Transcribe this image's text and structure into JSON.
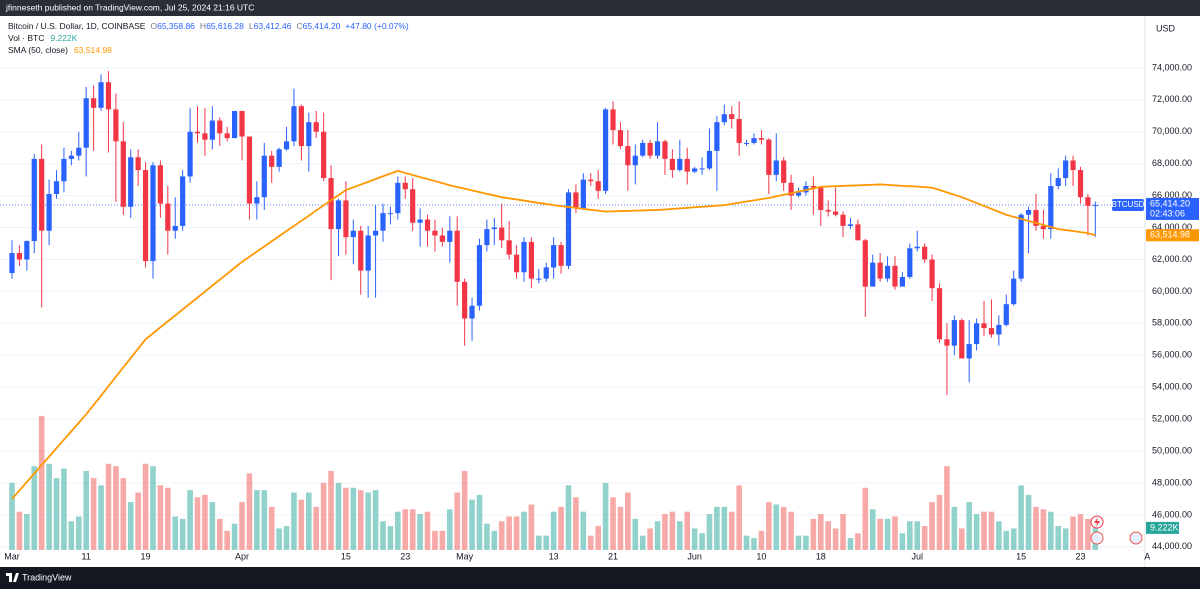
{
  "header": {
    "publisher": "jfinneseth published on TradingView.com, Jul 25, 2024 21:16 UTC"
  },
  "chart_data": {
    "type": "candlestick",
    "title": "Bitcoin / U.S. Dollar, 1D, COINBASE",
    "ohlc_legend": [
      {
        "label": "O",
        "value": "65,358.86"
      },
      {
        "label": "H",
        "value": "65,616.28"
      },
      {
        "label": "L",
        "value": "63,412.46"
      },
      {
        "label": "C",
        "value": "65,414.20"
      }
    ],
    "change": "+47.80 (+0.07%)",
    "categories": [
      "Mar",
      null,
      null,
      null,
      null,
      null,
      null,
      null,
      null,
      null,
      "11",
      null,
      null,
      null,
      null,
      null,
      null,
      null,
      "19",
      null,
      null,
      null,
      null,
      null,
      null,
      null,
      null,
      null,
      null,
      null,
      null,
      "Apr",
      null,
      null,
      null,
      null,
      null,
      null,
      null,
      null,
      null,
      null,
      null,
      null,
      null,
      "15",
      null,
      null,
      null,
      null,
      null,
      null,
      null,
      "23",
      null,
      null,
      null,
      null,
      null,
      null,
      null,
      "May",
      null,
      null,
      null,
      null,
      null,
      null,
      null,
      null,
      null,
      null,
      null,
      "13",
      null,
      null,
      null,
      null,
      null,
      null,
      null,
      "21",
      null,
      null,
      null,
      null,
      null,
      null,
      null,
      null,
      null,
      null,
      "Jun",
      null,
      null,
      null,
      null,
      null,
      null,
      null,
      null,
      "10",
      null,
      null,
      null,
      null,
      null,
      null,
      null,
      "18",
      null,
      null,
      null,
      null,
      null,
      null,
      null,
      null,
      null,
      null,
      null,
      null,
      "Jul",
      null,
      null,
      null,
      null,
      null,
      null,
      null,
      null,
      null,
      null,
      null,
      null,
      null,
      "15",
      null,
      null,
      null,
      null,
      null,
      null,
      null,
      "23",
      null,
      null,
      null,
      null,
      null,
      null,
      null,
      null,
      "A"
    ],
    "open": [
      61150,
      62400,
      62000,
      63150,
      68300,
      63800,
      66100,
      66900,
      68300,
      68500,
      69000,
      72100,
      71500,
      73100,
      71400,
      69400,
      65300,
      68400,
      67600,
      61900,
      67900,
      65500,
      63800,
      64100,
      67200,
      70000,
      69900,
      69500,
      70700,
      69900,
      69600,
      71300,
      69700,
      65500,
      65900,
      68500,
      67800,
      68900,
      69400,
      71600,
      69100,
      70600,
      70000,
      67100,
      63900,
      65700,
      63400,
      63800,
      61300,
      63500,
      63800,
      64900,
      64900,
      66800,
      66400,
      64300,
      64500,
      63800,
      63500,
      63100,
      63800,
      60600,
      58300,
      59100,
      62900,
      63900,
      64000,
      63200,
      62300,
      61200,
      63100,
      60800,
      60800,
      61500,
      62900,
      61600,
      66200,
      65200,
      67000,
      66900,
      66300,
      71400,
      70100,
      69100,
      67900,
      68500,
      69300,
      68500,
      69400,
      68300,
      67600,
      68300,
      67500,
      67700,
      67700,
      68800,
      70600,
      71100,
      70800,
      69300,
      69300,
      69600,
      69500,
      67300,
      68200,
      66800,
      66000,
      66200,
      66600,
      66500,
      65100,
      65000,
      64800,
      64100,
      64200,
      63200,
      60300,
      61800,
      60800,
      61600,
      60300,
      60900,
      62700,
      62800,
      62000,
      60200,
      57000,
      56600,
      58200,
      55800,
      56700,
      58000,
      57700,
      57300,
      57900,
      59200,
      60800,
      64800,
      65100,
      64100,
      63900,
      66600,
      67100,
      68200,
      67600,
      65900,
      65358.86,
      null,
      null,
      null,
      null,
      null,
      null,
      null
    ],
    "high": [
      63200,
      62900,
      63200,
      68600,
      69200,
      67000,
      67600,
      69000,
      68800,
      70000,
      72800,
      72900,
      73600,
      73800,
      72400,
      70600,
      68900,
      68900,
      68100,
      68100,
      68200,
      66600,
      65900,
      67600,
      71500,
      71600,
      71500,
      71600,
      70900,
      70300,
      71300,
      71300,
      69700,
      66900,
      69300,
      68800,
      69000,
      70300,
      72700,
      71700,
      71200,
      71300,
      71200,
      67900,
      65800,
      66900,
      64500,
      64100,
      64100,
      65400,
      65500,
      65300,
      67200,
      67200,
      67100,
      65200,
      64800,
      64500,
      64000,
      64700,
      64700,
      60800,
      59600,
      63300,
      64500,
      64600,
      65500,
      64400,
      62900,
      63400,
      63400,
      61400,
      61800,
      63400,
      63100,
      66400,
      66700,
      67400,
      67400,
      67600,
      71500,
      71900,
      70600,
      70100,
      69200,
      69500,
      69500,
      70600,
      69500,
      68900,
      69500,
      69000,
      67800,
      68400,
      70200,
      71000,
      71700,
      71600,
      71900,
      69500,
      69900,
      70100,
      69600,
      69900,
      68400,
      67300,
      66500,
      66900,
      67200,
      66600,
      65700,
      66500,
      65000,
      64600,
      64500,
      63300,
      62300,
      62400,
      62200,
      62200,
      61200,
      63000,
      63800,
      63000,
      62300,
      60500,
      58000,
      58500,
      58300,
      58200,
      58300,
      59400,
      59500,
      58500,
      59800,
      61300,
      64900,
      65300,
      66100,
      65100,
      67400,
      67700,
      68500,
      68500,
      67800,
      66100,
      65616.28,
      null,
      null,
      null,
      null,
      null,
      null,
      null
    ],
    "low": [
      60800,
      61600,
      61300,
      62400,
      59000,
      62900,
      65800,
      66200,
      67900,
      68200,
      67200,
      68800,
      71300,
      68700,
      65600,
      64800,
      64600,
      66600,
      61500,
      60800,
      64600,
      62300,
      63300,
      63800,
      66800,
      69300,
      68500,
      68900,
      69100,
      69400,
      69600,
      68200,
      64500,
      64500,
      65100,
      66800,
      67500,
      68800,
      69100,
      68200,
      67500,
      69600,
      66900,
      60700,
      62200,
      62300,
      61700,
      59800,
      59600,
      59600,
      63100,
      64200,
      64500,
      65800,
      63800,
      62800,
      62800,
      62500,
      62800,
      61800,
      59100,
      56600,
      56900,
      58800,
      62500,
      62900,
      62700,
      62000,
      60800,
      60600,
      60200,
      60500,
      60600,
      60800,
      61100,
      61400,
      64900,
      65100,
      66600,
      65800,
      66100,
      69200,
      68900,
      66300,
      66700,
      68400,
      68300,
      68300,
      67300,
      67100,
      67500,
      66700,
      67400,
      67300,
      67600,
      66300,
      70400,
      70200,
      68500,
      69100,
      69200,
      69200,
      66100,
      66900,
      66300,
      65100,
      65900,
      66000,
      64800,
      64100,
      64700,
      64700,
      63400,
      63900,
      63200,
      58400,
      60300,
      60600,
      60600,
      60100,
      60300,
      60800,
      62500,
      61800,
      59400,
      56800,
      53500,
      56000,
      55800,
      54300,
      56300,
      57200,
      57100,
      56600,
      57800,
      59100,
      60600,
      62400,
      63800,
      63300,
      63300,
      66400,
      66600,
      66600,
      65500,
      63500,
      63412.46,
      null,
      null,
      null,
      null,
      null,
      null,
      null
    ],
    "close": [
      62400,
      62000,
      63150,
      68300,
      63800,
      66100,
      66900,
      68300,
      68500,
      69000,
      72100,
      71500,
      73100,
      71400,
      69400,
      65300,
      68400,
      67600,
      61900,
      67900,
      65500,
      63800,
      64100,
      67200,
      70000,
      69900,
      69500,
      70700,
      69900,
      69600,
      71300,
      69700,
      65500,
      65900,
      68500,
      67800,
      68900,
      69400,
      71600,
      69100,
      70600,
      70000,
      67100,
      63900,
      65700,
      63400,
      63800,
      61300,
      63500,
      63800,
      64900,
      64900,
      66800,
      66400,
      64300,
      64500,
      63800,
      63500,
      63100,
      63800,
      60600,
      58300,
      59100,
      62900,
      63900,
      64000,
      63200,
      62300,
      61200,
      63100,
      60800,
      60800,
      61500,
      62900,
      61600,
      66200,
      65200,
      67000,
      66900,
      66300,
      71400,
      70100,
      69100,
      67900,
      68500,
      69300,
      68500,
      69400,
      68300,
      67600,
      68300,
      67500,
      67700,
      67700,
      68800,
      70600,
      71100,
      70800,
      69300,
      69300,
      69600,
      69500,
      67300,
      68200,
      66800,
      66000,
      66200,
      66600,
      66500,
      65100,
      65000,
      64800,
      64100,
      64200,
      63200,
      60300,
      61800,
      60800,
      61600,
      60300,
      60900,
      62700,
      62800,
      62000,
      60200,
      57000,
      56600,
      58200,
      55800,
      56700,
      58000,
      57700,
      57300,
      57900,
      59200,
      60800,
      64800,
      65100,
      64100,
      63900,
      66600,
      67100,
      68200,
      67600,
      65900,
      65358.86,
      65414.2,
      null,
      null,
      null,
      null,
      null,
      null,
      null
    ],
    "up_color": "#2962ff",
    "down_color": "#f23645",
    "volume": {
      "name": "Vol · BTC",
      "axis": "y2",
      "value_label": "9.222K",
      "up_color": "#26a69a",
      "down_color": "#ef5350",
      "values": [
        28000,
        16000,
        15000,
        35000,
        56000,
        36000,
        30000,
        34000,
        12000,
        14000,
        33000,
        30000,
        27000,
        36000,
        35000,
        30000,
        20000,
        24000,
        36000,
        35000,
        27000,
        26000,
        14000,
        13000,
        25000,
        22000,
        23000,
        20000,
        13000,
        8000,
        11000,
        20000,
        32000,
        25000,
        25000,
        18000,
        9000,
        10000,
        24000,
        21000,
        24000,
        18000,
        28000,
        33000,
        28000,
        26000,
        26000,
        25000,
        24000,
        25000,
        12000,
        10000,
        16000,
        17000,
        17000,
        15000,
        16000,
        8000,
        8000,
        17000,
        24000,
        33000,
        21000,
        23000,
        11000,
        8000,
        12000,
        14000,
        14000,
        16000,
        19000,
        6000,
        6000,
        16000,
        18000,
        27000,
        22000,
        16000,
        6000,
        10000,
        28000,
        22000,
        18000,
        24000,
        13000,
        6000,
        9000,
        12000,
        15000,
        16000,
        12000,
        16000,
        9000,
        7000,
        15000,
        18000,
        18000,
        16000,
        27000,
        6000,
        5000,
        8000,
        20000,
        19000,
        18000,
        16000,
        6000,
        6000,
        13000,
        15000,
        12000,
        9000,
        15000,
        5000,
        7000,
        26000,
        17000,
        13000,
        13000,
        14000,
        7000,
        12000,
        12000,
        10000,
        20000,
        23000,
        35000,
        18000,
        9000,
        20000,
        15000,
        16000,
        16000,
        12000,
        8000,
        9000,
        27000,
        23000,
        18000,
        17000,
        16000,
        10000,
        9000,
        14000,
        15000,
        13000,
        9222,
        null,
        null,
        null,
        null,
        null,
        null,
        null
      ]
    },
    "sma": {
      "name": "SMA (50, close)",
      "value_label": "63,514.98",
      "color": "#ff9800",
      "values": [
        47000,
        47530,
        48060,
        48590,
        49120,
        49650,
        50180,
        50710,
        51240,
        51770,
        52300,
        52890,
        53470,
        54060,
        54650,
        55240,
        55820,
        56410,
        57000,
        57370,
        57750,
        58120,
        58490,
        58870,
        59240,
        59610,
        59980,
        60360,
        60730,
        61100,
        61480,
        61850,
        62170,
        62490,
        62810,
        63140,
        63460,
        63780,
        64100,
        64420,
        64740,
        65070,
        65390,
        65710,
        66030,
        66350,
        66520,
        66690,
        66860,
        67040,
        67210,
        67380,
        67550,
        67420,
        67290,
        67160,
        67040,
        66910,
        66780,
        66650,
        66540,
        66440,
        66330,
        66220,
        66110,
        66010,
        65900,
        65830,
        65760,
        65690,
        65610,
        65540,
        65470,
        65400,
        65340,
        65290,
        65230,
        65170,
        65110,
        65060,
        65000,
        65010,
        65030,
        65040,
        65060,
        65070,
        65090,
        65100,
        65130,
        65170,
        65200,
        65230,
        65270,
        65300,
        65330,
        65370,
        65400,
        65480,
        65550,
        65630,
        65700,
        65780,
        65850,
        65950,
        66050,
        66150,
        66250,
        66350,
        66450,
        66550,
        66570,
        66590,
        66610,
        66630,
        66640,
        66660,
        66680,
        66700,
        66670,
        66640,
        66610,
        66590,
        66560,
        66530,
        66500,
        66350,
        66200,
        66050,
        65900,
        65720,
        65530,
        65350,
        65170,
        64980,
        64800,
        64670,
        64540,
        64410,
        64290,
        64160,
        64030,
        63900,
        63840,
        63780,
        63710,
        63650,
        63514.98,
        null,
        null,
        null,
        null,
        null,
        null,
        null
      ]
    },
    "ylim": [
      43800,
      77250
    ],
    "yticks": [
      {
        "value": 44000,
        "label": "44,000.00"
      },
      {
        "value": 46000,
        "label": "46,000.00"
      },
      {
        "value": 48000,
        "label": "48,000.00"
      },
      {
        "value": 50000,
        "label": "50,000.00"
      },
      {
        "value": 52000,
        "label": "52,000.00"
      },
      {
        "value": 54000,
        "label": "54,000.00"
      },
      {
        "value": 56000,
        "label": "56,000.00"
      },
      {
        "value": 58000,
        "label": "58,000.00"
      },
      {
        "value": 60000,
        "label": "60,000.00"
      },
      {
        "value": 62000,
        "label": "62,000.00"
      },
      {
        "value": 64000,
        "label": "64,000.00"
      },
      {
        "value": 66000,
        "label": "66,000.00"
      },
      {
        "value": 68000,
        "label": "68,000.00"
      },
      {
        "value": 70000,
        "label": "70,000.00"
      },
      {
        "value": 72000,
        "label": "72,000.00"
      },
      {
        "value": 74000,
        "label": "74,000.00"
      }
    ],
    "y2lim": [
      0,
      223000
    ],
    "grid": true,
    "y_unit": "USD",
    "symbol_label": "BTCUSD",
    "last_price_label": "65,414.20",
    "countdown": "02:43:06"
  },
  "footer": {
    "brand": "TradingView"
  }
}
